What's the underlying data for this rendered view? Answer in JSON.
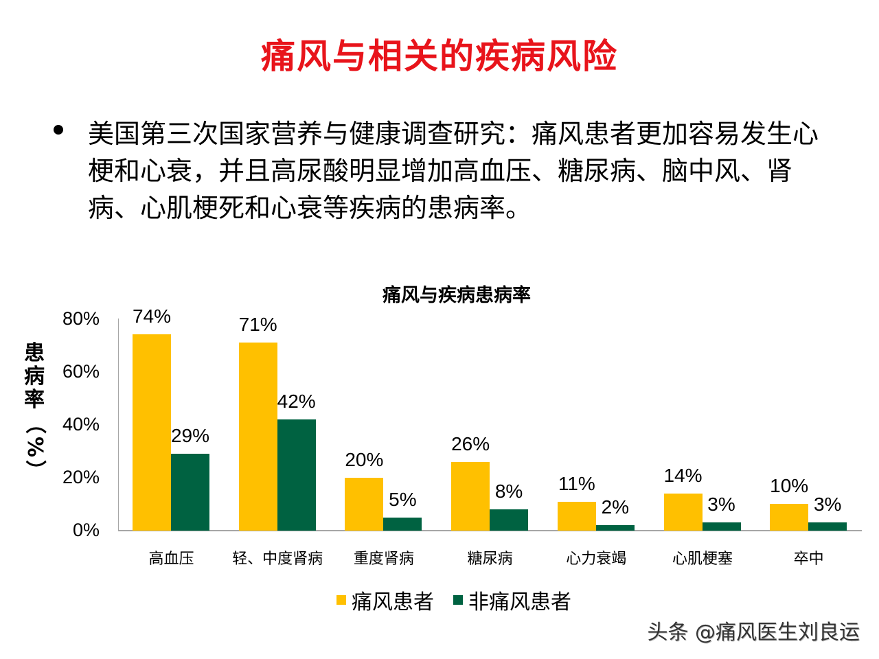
{
  "slide": {
    "title": "痛风与相关的疾病风险",
    "bullet": "美国第三次国家营养与健康调查研究：痛风患者更加容易发生心梗和心衰，并且高尿酸明显增加高血压、糖尿病、脑中风、肾病、心肌梗死和心衰等疾病的患病率。"
  },
  "colors": {
    "title": "#e8141b",
    "gout": "#ffc000",
    "non_gout": "#006241",
    "axis": "#a6a6a6"
  },
  "ylabel_chars": [
    "患",
    "病",
    "率",
    "（",
    "%",
    "）"
  ],
  "watermark": "头条 @痛风医生刘良运",
  "chart_data": {
    "type": "bar",
    "title": "痛风与疾病患病率",
    "xlabel": "",
    "ylabel": "患病率（%）",
    "ylim": [
      0,
      80
    ],
    "yticks": [
      "0%",
      "20%",
      "40%",
      "60%",
      "80%"
    ],
    "grid": false,
    "legend_position": "bottom",
    "categories": [
      "高血压",
      "轻、中度肾病",
      "重度肾病",
      "糖尿病",
      "心力衰竭",
      "心肌梗塞",
      "卒中"
    ],
    "series": [
      {
        "name": "痛风患者",
        "values": [
          74,
          71,
          20,
          26,
          11,
          14,
          10
        ],
        "labels": [
          "74%",
          "71%",
          "20%",
          "26%",
          "11%",
          "14%",
          "10%"
        ]
      },
      {
        "name": "非痛风患者",
        "values": [
          29,
          42,
          5,
          8,
          2,
          3,
          3
        ],
        "labels": [
          "29%",
          "42%",
          "5%",
          "8%",
          "2%",
          "3%",
          "3%"
        ]
      }
    ]
  }
}
